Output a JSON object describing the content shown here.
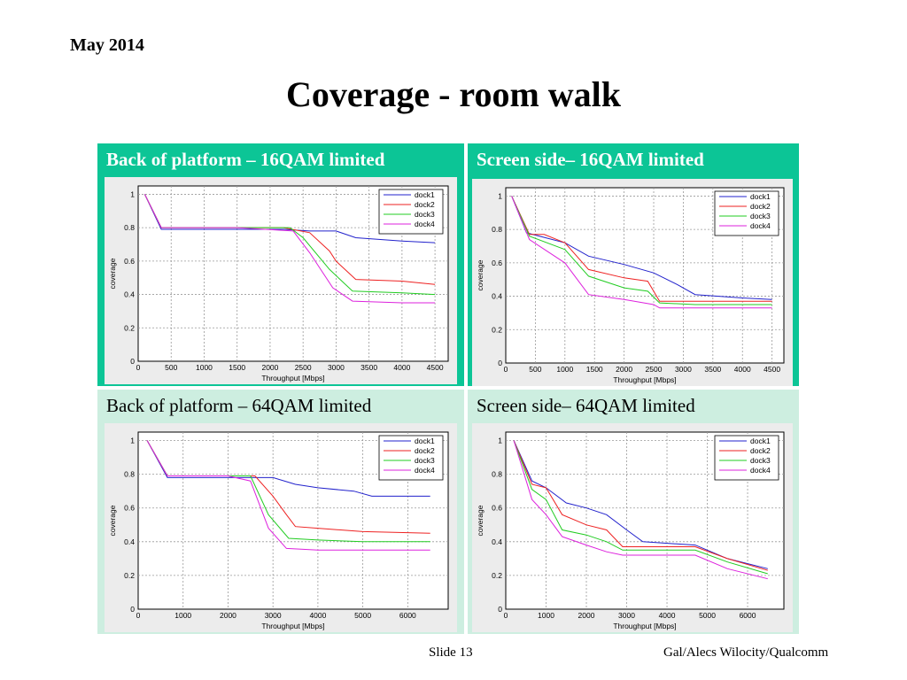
{
  "header": {
    "date": "May 2014",
    "title": "Coverage  - room walk"
  },
  "footer": {
    "slide": "Slide 13",
    "author": "Gal/Alecs Wilocity/Qualcomm"
  },
  "colors": {
    "dock1": "#2222cc",
    "dock2": "#ee2222",
    "dock3": "#22cc22",
    "dock4": "#dd22dd",
    "panel_dark": "#0cc596",
    "panel_light": "#cdeee0"
  },
  "chart_data": [
    {
      "type": "line",
      "title": "Back of platform – 16QAM limited",
      "xlabel": "Throughput [Mbps]",
      "ylabel": "coverage",
      "xlim": [
        0,
        4700
      ],
      "ylim": [
        0,
        1.05
      ],
      "xticks": [
        0,
        500,
        1000,
        1500,
        2000,
        2500,
        3000,
        3500,
        4000,
        4500
      ],
      "yticks": [
        0,
        0.2,
        0.4,
        0.6,
        0.8,
        1
      ],
      "grid": true,
      "legend": "top-right",
      "series": [
        {
          "name": "dock1",
          "x": [
            100,
            350,
            1500,
            2200,
            2600,
            3000,
            3300,
            4000,
            4500
          ],
          "y": [
            1,
            0.79,
            0.79,
            0.79,
            0.78,
            0.78,
            0.74,
            0.72,
            0.71
          ]
        },
        {
          "name": "dock2",
          "x": [
            100,
            350,
            1500,
            2200,
            2600,
            2900,
            3000,
            3300,
            4000,
            4500
          ],
          "y": [
            1,
            0.8,
            0.8,
            0.8,
            0.77,
            0.66,
            0.6,
            0.49,
            0.48,
            0.46
          ]
        },
        {
          "name": "dock3",
          "x": [
            100,
            350,
            1500,
            2300,
            2500,
            2900,
            3250,
            4000,
            4500
          ],
          "y": [
            1,
            0.8,
            0.8,
            0.8,
            0.74,
            0.55,
            0.42,
            0.41,
            0.4
          ]
        },
        {
          "name": "dock4",
          "x": [
            100,
            350,
            1500,
            2350,
            2600,
            2950,
            3250,
            4000,
            4500
          ],
          "y": [
            1,
            0.8,
            0.8,
            0.78,
            0.65,
            0.44,
            0.36,
            0.35,
            0.35
          ]
        }
      ]
    },
    {
      "type": "line",
      "title": "Screen side– 16QAM limited",
      "xlabel": "Throughput [Mbps]",
      "ylabel": "coverage",
      "xlim": [
        0,
        4700
      ],
      "ylim": [
        0,
        1.05
      ],
      "xticks": [
        0,
        500,
        1000,
        1500,
        2000,
        2500,
        3000,
        3500,
        4000,
        4500
      ],
      "yticks": [
        0,
        0.2,
        0.4,
        0.6,
        0.8,
        1
      ],
      "grid": true,
      "legend": "top-right",
      "series": [
        {
          "name": "dock1",
          "x": [
            100,
            350,
            1000,
            1400,
            2000,
            2500,
            2900,
            3200,
            4000,
            4500
          ],
          "y": [
            1,
            0.78,
            0.72,
            0.64,
            0.59,
            0.54,
            0.47,
            0.41,
            0.39,
            0.38
          ]
        },
        {
          "name": "dock2",
          "x": [
            100,
            400,
            650,
            1000,
            1400,
            2000,
            2400,
            2600,
            3200,
            4500
          ],
          "y": [
            1,
            0.77,
            0.77,
            0.72,
            0.56,
            0.51,
            0.49,
            0.37,
            0.37,
            0.37
          ]
        },
        {
          "name": "dock3",
          "x": [
            100,
            400,
            1000,
            1400,
            2000,
            2400,
            2600,
            3200,
            4500
          ],
          "y": [
            1,
            0.76,
            0.68,
            0.52,
            0.45,
            0.43,
            0.36,
            0.35,
            0.35
          ]
        },
        {
          "name": "dock4",
          "x": [
            100,
            400,
            1000,
            1400,
            2000,
            2500,
            2600,
            3200,
            4500
          ],
          "y": [
            1,
            0.74,
            0.6,
            0.41,
            0.38,
            0.35,
            0.33,
            0.33,
            0.33
          ]
        }
      ]
    },
    {
      "type": "line",
      "title": "Back of platform – 64QAM limited",
      "xlabel": "Throughput [Mbps]",
      "ylabel": "coverage",
      "xlim": [
        0,
        6900
      ],
      "ylim": [
        0,
        1.05
      ],
      "xticks": [
        0,
        1000,
        2000,
        3000,
        4000,
        5000,
        6000
      ],
      "yticks": [
        0,
        0.2,
        0.4,
        0.6,
        0.8,
        1
      ],
      "grid": true,
      "legend": "top-right",
      "series": [
        {
          "name": "dock1",
          "x": [
            200,
            650,
            2000,
            3000,
            3500,
            4000,
            4800,
            5200,
            6500
          ],
          "y": [
            1,
            0.78,
            0.78,
            0.78,
            0.74,
            0.72,
            0.7,
            0.67,
            0.67
          ]
        },
        {
          "name": "dock2",
          "x": [
            200,
            650,
            2000,
            2600,
            3000,
            3300,
            3500,
            4000,
            5000,
            6500
          ],
          "y": [
            1,
            0.79,
            0.79,
            0.79,
            0.67,
            0.56,
            0.49,
            0.48,
            0.46,
            0.45
          ]
        },
        {
          "name": "dock3",
          "x": [
            200,
            650,
            2000,
            2500,
            2900,
            3350,
            4000,
            5000,
            6500
          ],
          "y": [
            1,
            0.79,
            0.79,
            0.79,
            0.56,
            0.42,
            0.41,
            0.4,
            0.4
          ]
        },
        {
          "name": "dock4",
          "x": [
            200,
            650,
            2000,
            2500,
            2900,
            3300,
            4000,
            5000,
            6500
          ],
          "y": [
            1,
            0.79,
            0.79,
            0.76,
            0.48,
            0.36,
            0.35,
            0.35,
            0.35
          ]
        }
      ]
    },
    {
      "type": "line",
      "title": "Screen side– 64QAM limited",
      "xlabel": "Throughput [Mbps]",
      "ylabel": "coverage",
      "xlim": [
        0,
        6900
      ],
      "ylim": [
        0,
        1.05
      ],
      "xticks": [
        0,
        1000,
        2000,
        3000,
        4000,
        5000,
        6000
      ],
      "yticks": [
        0,
        0.2,
        0.4,
        0.6,
        0.8,
        1
      ],
      "grid": true,
      "legend": "top-right",
      "series": [
        {
          "name": "dock1",
          "x": [
            200,
            650,
            1000,
            1500,
            2000,
            2500,
            3000,
            3400,
            4700,
            5500,
            6500
          ],
          "y": [
            1,
            0.76,
            0.72,
            0.63,
            0.6,
            0.56,
            0.47,
            0.4,
            0.38,
            0.3,
            0.24
          ]
        },
        {
          "name": "dock2",
          "x": [
            200,
            650,
            1000,
            1400,
            2000,
            2500,
            2900,
            4700,
            5500,
            6500
          ],
          "y": [
            1,
            0.74,
            0.72,
            0.56,
            0.5,
            0.47,
            0.37,
            0.37,
            0.3,
            0.23
          ]
        },
        {
          "name": "dock3",
          "x": [
            200,
            650,
            1000,
            1400,
            2000,
            2500,
            2900,
            4700,
            5500,
            6500
          ],
          "y": [
            1,
            0.71,
            0.65,
            0.47,
            0.44,
            0.4,
            0.35,
            0.35,
            0.28,
            0.21
          ]
        },
        {
          "name": "dock4",
          "x": [
            200,
            650,
            1000,
            1400,
            2000,
            2500,
            2900,
            4700,
            5500,
            6500
          ],
          "y": [
            1,
            0.65,
            0.56,
            0.43,
            0.38,
            0.34,
            0.32,
            0.32,
            0.24,
            0.18
          ]
        }
      ]
    }
  ]
}
